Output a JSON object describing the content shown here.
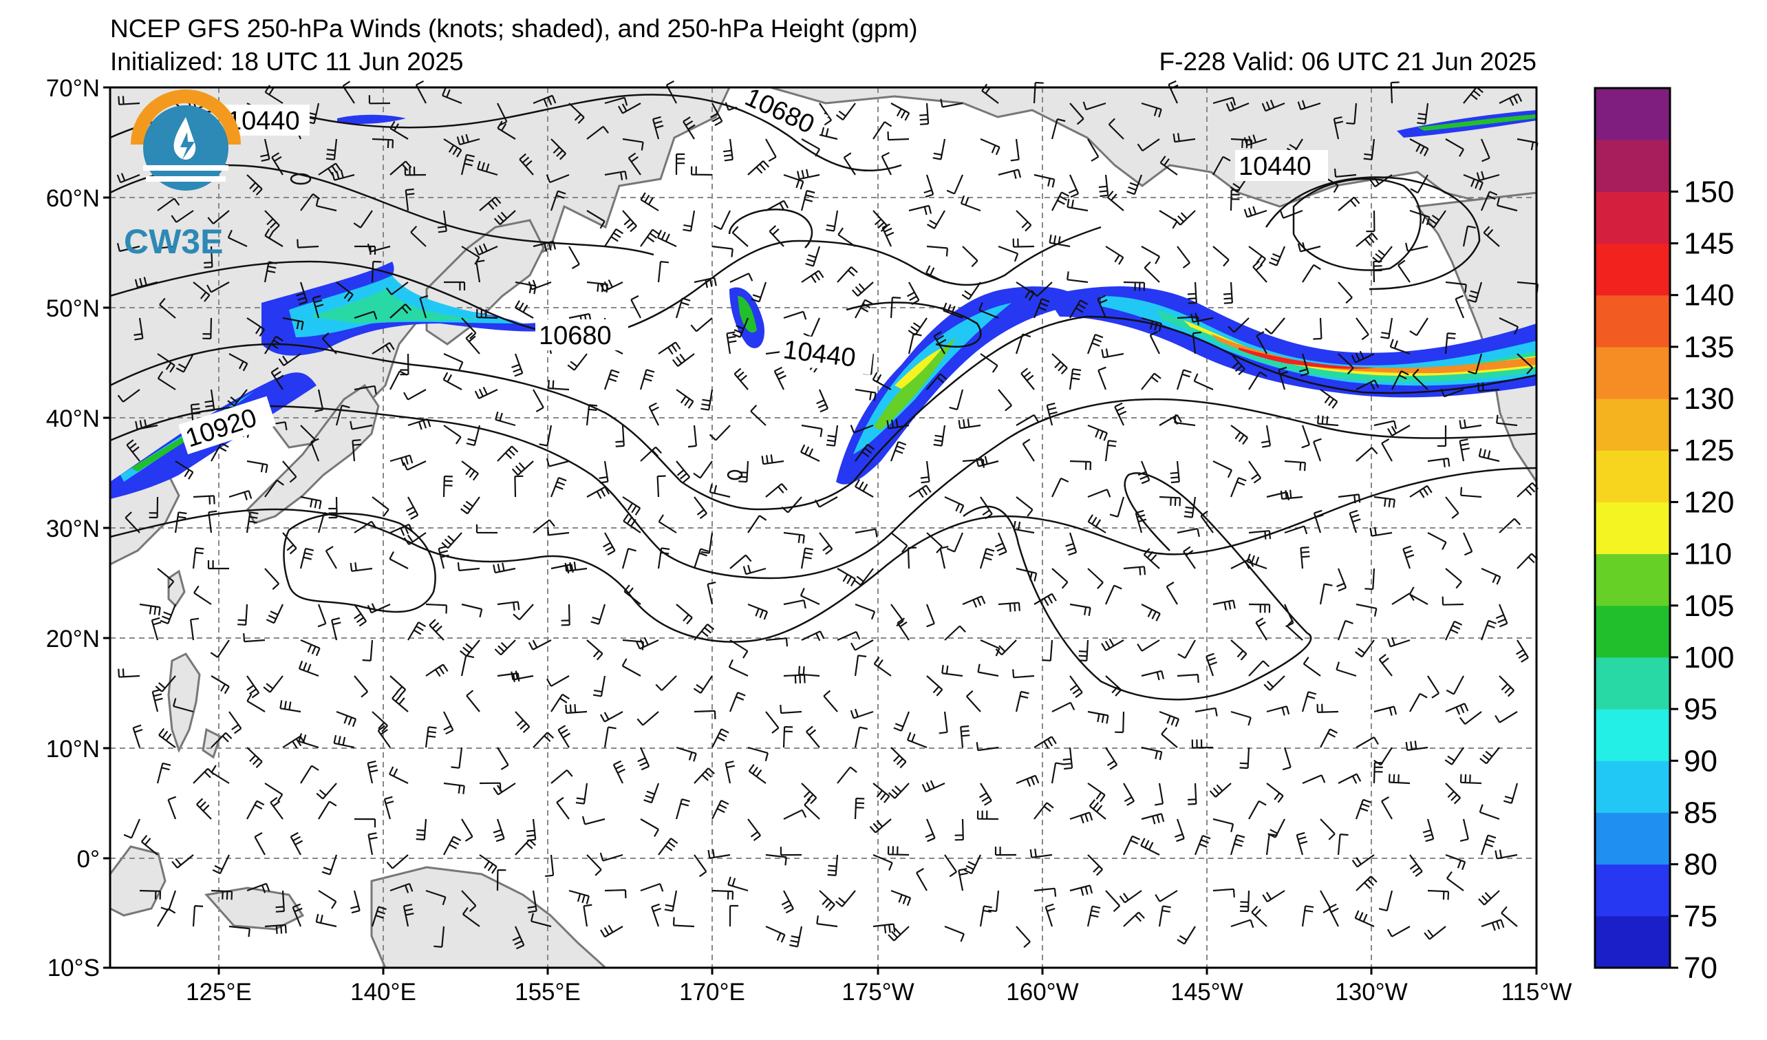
{
  "title": "NCEP GFS 250-hPa Winds (knots; shaded), and 250-hPa Height (gpm)",
  "initialized": "Initialized: 18 UTC 11 Jun 2025",
  "valid": "F-228  Valid: 06 UTC 21 Jun 2025",
  "logo": {
    "text": "CW3E",
    "icon": "cw3e-logo-icon"
  },
  "map": {
    "lat_labels": [
      "70°N",
      "60°N",
      "50°N",
      "40°N",
      "30°N",
      "20°N",
      "10°N",
      "0°",
      "10°S"
    ],
    "lon_labels": [
      "125°E",
      "140°E",
      "155°E",
      "170°E",
      "175°W",
      "160°W",
      "145°W",
      "130°W",
      "115°W"
    ],
    "contour_labels": [
      "10440",
      "10680",
      "10440",
      "10680",
      "10440",
      "10920"
    ]
  },
  "colorbar": {
    "ticks": [
      "70",
      "75",
      "80",
      "85",
      "90",
      "95",
      "100",
      "105",
      "110",
      "120",
      "125",
      "130",
      "135",
      "140",
      "145",
      "150"
    ],
    "colors": [
      "#1a1fc8",
      "#2638f2",
      "#1f8ff2",
      "#22c8f5",
      "#23efe6",
      "#28d9a6",
      "#21bf2c",
      "#67d026",
      "#f4f423",
      "#f7d51f",
      "#f5b320",
      "#f58c24",
      "#f25b22",
      "#f2221f",
      "#d51f3f",
      "#a81e5c",
      "#801e7f"
    ]
  }
}
